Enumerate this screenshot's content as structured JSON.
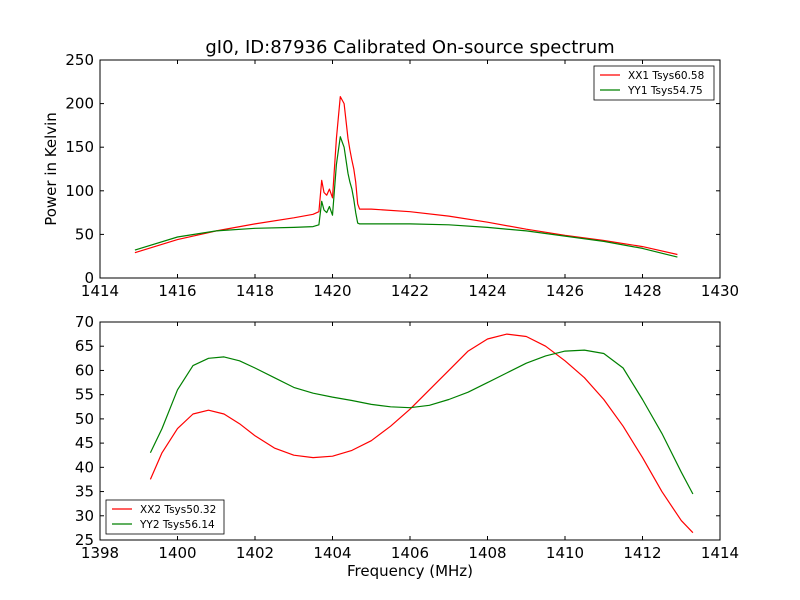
{
  "figure_title": "gI0, ID:87936 Calibrated On-source spectrum",
  "colors": {
    "red": "#ff0000",
    "green": "#008000",
    "axes": "#000000"
  },
  "chart_data": [
    {
      "type": "line",
      "title": "gI0, ID:87936 Calibrated On-source spectrum",
      "xlabel": "",
      "ylabel": "Power in Kelvin",
      "xlim": [
        1414,
        1430
      ],
      "ylim": [
        0,
        250
      ],
      "xticks": [
        1414,
        1416,
        1418,
        1420,
        1422,
        1424,
        1426,
        1428,
        1430
      ],
      "yticks": [
        0,
        50,
        100,
        150,
        200,
        250
      ],
      "legend_position": "top-right",
      "grid": false,
      "series": [
        {
          "name": "XX1 Tsys60.58",
          "color": "#ff0000",
          "x": [
            1414.9,
            1416,
            1417,
            1418,
            1419,
            1419.5,
            1419.65,
            1419.72,
            1419.78,
            1419.85,
            1419.92,
            1420.0,
            1420.1,
            1420.2,
            1420.25,
            1420.3,
            1420.4,
            1420.45,
            1420.5,
            1420.55,
            1420.6,
            1420.65,
            1420.7,
            1421,
            1422,
            1423,
            1424,
            1425,
            1426,
            1427,
            1428,
            1428.9
          ],
          "y": [
            29,
            44,
            54,
            62,
            69,
            73,
            76,
            112,
            98,
            95,
            102,
            92,
            160,
            208,
            204,
            200,
            160,
            147,
            135,
            125,
            110,
            85,
            79,
            79,
            76,
            71,
            64,
            56,
            49,
            43,
            36,
            27
          ]
        },
        {
          "name": "YY1 Tsys54.75",
          "color": "#008000",
          "x": [
            1414.9,
            1416,
            1417,
            1418,
            1419,
            1419.5,
            1419.65,
            1419.72,
            1419.78,
            1419.85,
            1419.92,
            1420.0,
            1420.1,
            1420.2,
            1420.25,
            1420.3,
            1420.4,
            1420.45,
            1420.5,
            1420.55,
            1420.6,
            1420.65,
            1420.7,
            1421,
            1422,
            1423,
            1424,
            1425,
            1426,
            1427,
            1428,
            1428.9
          ],
          "y": [
            32,
            47,
            54,
            57,
            58,
            59,
            61,
            88,
            78,
            75,
            82,
            72,
            130,
            162,
            156,
            150,
            120,
            110,
            102,
            90,
            75,
            63,
            62,
            62,
            62,
            61,
            58,
            54,
            48,
            42,
            34,
            24
          ]
        }
      ]
    },
    {
      "type": "line",
      "title": "",
      "xlabel": "Frequency (MHz)",
      "ylabel": "",
      "xlim": [
        1398,
        1414
      ],
      "ylim": [
        25,
        70
      ],
      "xticks": [
        1398,
        1400,
        1402,
        1404,
        1406,
        1408,
        1410,
        1412,
        1414
      ],
      "yticks": [
        25,
        30,
        35,
        40,
        45,
        50,
        55,
        60,
        65,
        70
      ],
      "legend_position": "lower-left",
      "grid": false,
      "series": [
        {
          "name": "XX2 Tsys50.32",
          "color": "#ff0000",
          "x": [
            1399.3,
            1399.6,
            1400,
            1400.4,
            1400.8,
            1401.2,
            1401.6,
            1402,
            1402.5,
            1403,
            1403.5,
            1404,
            1404.5,
            1405,
            1405.5,
            1406,
            1406.5,
            1407,
            1407.5,
            1408,
            1408.5,
            1409,
            1409.5,
            1410,
            1410.5,
            1411,
            1411.5,
            1412,
            1412.5,
            1413,
            1413.3
          ],
          "y": [
            37.5,
            43,
            48,
            51,
            51.8,
            51,
            49,
            46.5,
            44,
            42.5,
            42,
            42.3,
            43.5,
            45.5,
            48.5,
            52,
            56,
            60,
            64,
            66.5,
            67.5,
            67,
            65,
            62,
            58.5,
            54,
            48.5,
            42,
            35,
            29,
            26.5
          ]
        },
        {
          "name": "YY2 Tsys56.14",
          "color": "#008000",
          "x": [
            1399.3,
            1399.6,
            1400,
            1400.4,
            1400.8,
            1401.2,
            1401.6,
            1402,
            1402.5,
            1403,
            1403.5,
            1404,
            1404.5,
            1405,
            1405.5,
            1406,
            1406.5,
            1407,
            1407.5,
            1408,
            1408.5,
            1409,
            1409.5,
            1410,
            1410.5,
            1411,
            1411.5,
            1412,
            1412.5,
            1413,
            1413.3
          ],
          "y": [
            43,
            48,
            56,
            61,
            62.5,
            62.8,
            62,
            60.5,
            58.5,
            56.5,
            55.3,
            54.5,
            53.8,
            53,
            52.5,
            52.3,
            52.8,
            54,
            55.5,
            57.5,
            59.5,
            61.5,
            63,
            64,
            64.2,
            63.5,
            60.5,
            54,
            47,
            39,
            34.5
          ]
        }
      ]
    }
  ]
}
